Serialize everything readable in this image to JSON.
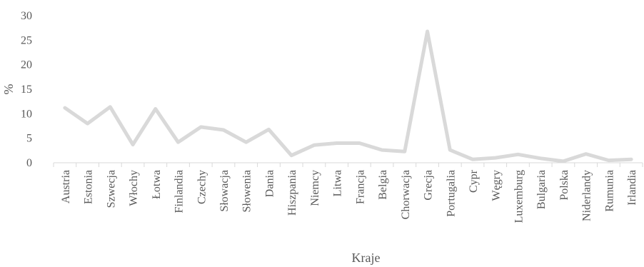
{
  "chart_data": {
    "type": "line",
    "title": "",
    "xlabel": "Kraje",
    "ylabel": "%",
    "ylim": [
      0,
      30
    ],
    "yticks": [
      0,
      5,
      10,
      15,
      20,
      25,
      30
    ],
    "grid": false,
    "legend": "none",
    "categories": [
      "Austria",
      "Estonia",
      "Szwecja",
      "Włochy",
      "Łotwa",
      "Finlandia",
      "Czechy",
      "Słowacja",
      "Słowenia",
      "Dania",
      "Hiszpania",
      "Niemcy",
      "Litwa",
      "Francja",
      "Belgia",
      "Chorwacja",
      "Grecja",
      "Portugalia",
      "Cypr",
      "Węgry",
      "Luxemburg",
      "Bulgaria",
      "Polska",
      "Niderlandy",
      "Rumunia",
      "Irlandia"
    ],
    "series": [
      {
        "values": [
          11.2,
          8.0,
          11.4,
          3.7,
          11.0,
          4.2,
          7.3,
          6.7,
          4.2,
          6.8,
          1.5,
          3.6,
          4.0,
          4.0,
          2.6,
          2.3,
          26.8,
          2.6,
          0.7,
          1.0,
          1.7,
          0.9,
          0.3,
          1.8,
          0.5,
          0.7
        ],
        "color": "#d9d9d9"
      }
    ],
    "axis_color": "#d9d9d9",
    "text_color": "#595959"
  }
}
